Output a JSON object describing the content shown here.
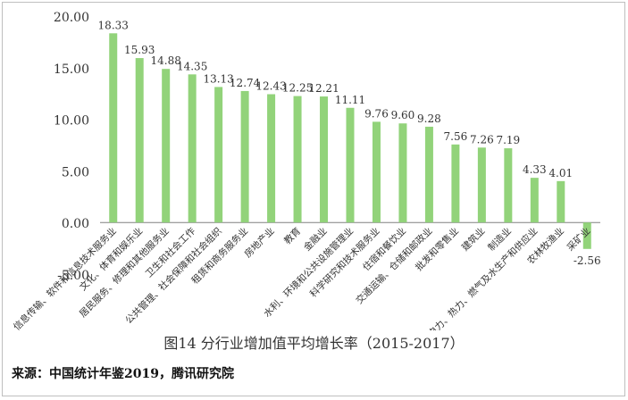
{
  "caption": "图14  分行业增加值平均增长率（2015-2017）",
  "source": "来源：中国统计年鉴2019，腾讯研究院",
  "colors": {
    "bar": "#92d37a",
    "axis": "#808080",
    "text": "#333333",
    "frame": "#bfbfbf"
  },
  "chart_data": {
    "type": "bar",
    "categories": [
      "信息传输、软件和信息技术服务业",
      "文化、体育和娱乐业",
      "居民服务、修理和其他服务业",
      "卫生和社会工作",
      "公共管理、社会保障和社会组织",
      "租赁和商务服务业",
      "房地产业",
      "教育",
      "金融业",
      "水利、环境和公共设施管理业",
      "科学研究和技术服务业",
      "住宿和餐饮业",
      "交通运输、仓储和邮政业",
      "批发和零售业",
      "建筑业",
      "制造业",
      "电力、热力、燃气及水生产和供应业",
      "农林牧渔业",
      "采矿业"
    ],
    "values": [
      18.33,
      15.93,
      14.88,
      14.35,
      13.13,
      12.74,
      12.43,
      12.25,
      12.21,
      11.11,
      9.76,
      9.6,
      9.28,
      7.56,
      7.26,
      7.19,
      4.33,
      4.01,
      -2.56
    ],
    "value_labels": [
      "18.33",
      "15.93",
      "14.88",
      "14.35",
      "13.13",
      "12.74",
      "12.43",
      "12.25",
      "12.21",
      "11.11",
      "9.76",
      "9.60",
      "9.28",
      "7.56",
      "7.26",
      "7.19",
      "4.33",
      "4.01",
      "-2.56"
    ],
    "yticks": [
      "-5.00",
      "0.00",
      "5.00",
      "10.00",
      "15.00",
      "20.00"
    ],
    "ylim": [
      -5,
      20
    ],
    "grid": false,
    "legend": "none"
  }
}
